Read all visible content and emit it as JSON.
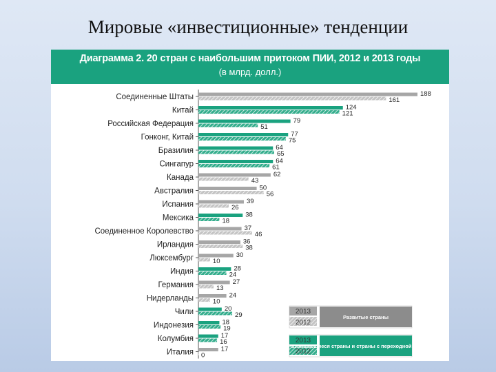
{
  "slide": {
    "title": "Мировые «инвестиционные» тенденции"
  },
  "colors": {
    "header_bg": "#1aa27f",
    "developed_2013": "#a6a6a6",
    "developed_2012": "#c4c4c4",
    "developing_2013": "#1aa27f",
    "developing_2012": "#33ad8c"
  },
  "chart_data": {
    "type": "bar",
    "orientation": "horizontal",
    "title": "Диаграмма 2. 20 стран с наибольшим притоком ПИИ, 2012 и 2013 годы",
    "subtitle": "(в млрд. долл.)",
    "categories": [
      "Соединенные Штаты",
      "Китай",
      "Российская Федерация",
      "Гонконг, Китай",
      "Бразилия",
      "Сингапур",
      "Канада",
      "Австралия",
      "Испания",
      "Мексика",
      "Соединенное Королевство",
      "Ирландия",
      "Люксембург",
      "Индия",
      "Германия",
      "Нидерланды",
      "Чили",
      "Индонезия",
      "Колумбия",
      "Италия"
    ],
    "group": [
      "developed",
      "developing",
      "developing",
      "developing",
      "developing",
      "developing",
      "developed",
      "developed",
      "developed",
      "developing",
      "developed",
      "developed",
      "developed",
      "developing",
      "developed",
      "developed",
      "developing",
      "developing",
      "developing",
      "developed"
    ],
    "series": [
      {
        "name": "2013",
        "values": [
          188,
          124,
          79,
          77,
          64,
          64,
          62,
          50,
          39,
          38,
          37,
          36,
          30,
          28,
          27,
          24,
          20,
          18,
          17,
          17
        ]
      },
      {
        "name": "2012",
        "values": [
          161,
          121,
          51,
          75,
          65,
          61,
          43,
          56,
          26,
          18,
          46,
          38,
          10,
          24,
          13,
          10,
          29,
          19,
          16,
          0
        ]
      }
    ],
    "legend": {
      "developed": {
        "label_2013": "2013",
        "label_2012": "2012",
        "description": "Развитые страны"
      },
      "developing": {
        "label_2013": "2013",
        "label_2012": "2012",
        "description": "Развивающиеся страны и страны с переходной экономикой"
      }
    },
    "legend_position": "bottom-right",
    "grid": false
  }
}
